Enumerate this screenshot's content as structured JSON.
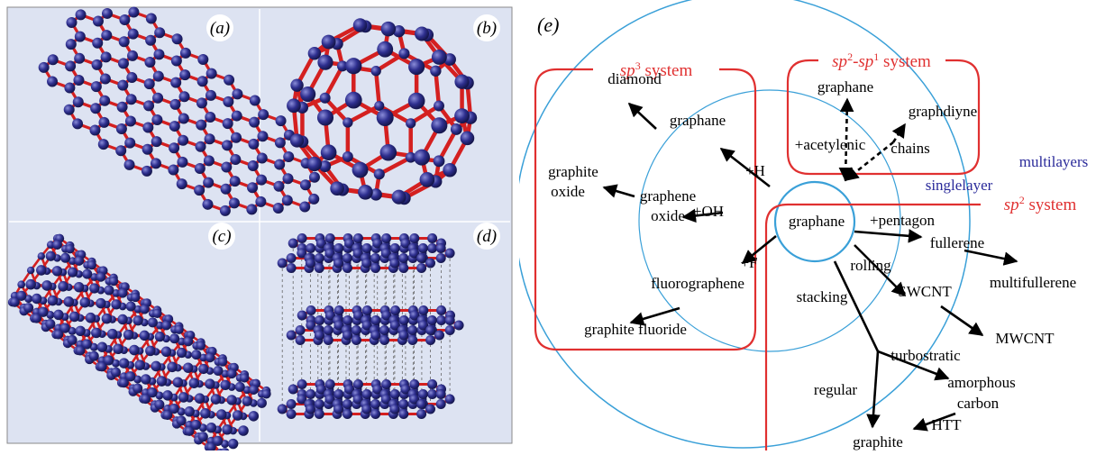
{
  "panels": {
    "a": "(a)",
    "b": "(b)",
    "c": "(c)",
    "d": "(d)",
    "e": "(e)"
  },
  "systems": {
    "sp3_base": "sp",
    "sp3_sup": "3",
    "sp3_word": " system",
    "sp2sp1_base1": "sp",
    "sp2sp1_sup1": "2",
    "sp2sp1_dash": "-",
    "sp2sp1_base2": "sp",
    "sp2sp1_sup2": "1",
    "sp2sp1_word": " system",
    "sp2_base": "sp",
    "sp2_sup": "2",
    "sp2_word": " system"
  },
  "labels": {
    "diamond": "diamond",
    "graphane_top": "graphane",
    "graphane_sp1": "graphane",
    "graphdiyne": "graphdiyne",
    "acetylenic": "+acetylenic",
    "chains": "chains",
    "multilayers": "multilayers",
    "singlelayer": "singlelayer",
    "graphite_oxide_1": "graphite",
    "graphite_oxide_2": "oxide",
    "graphene_oxide_1": "graphene",
    "graphene_oxide_2": "oxide",
    "plus_h": "+H",
    "plus_oh": "+OH",
    "graphane_center": "graphane",
    "plus_pentagon": "+pentagon",
    "fullerene": "fullerene",
    "multifullerene": "multifullerene",
    "plus_f": "+F",
    "fluorographene": "fluorographene",
    "rolling": "rolling",
    "swcnt": "SWCNT",
    "stacking": "stacking",
    "graphite_fluoride": "graphite fluoride",
    "mwcnt": "MWCNT",
    "turbostratic": "turbostratic",
    "amorphous": "amorphous",
    "regular": "regular",
    "carbon": "carbon",
    "htt": "HTT",
    "graphite": "graphite"
  },
  "colors": {
    "panel_bg": "#dde3f2",
    "atom": "#2e2f8f",
    "bond": "#d42020",
    "system_box": "#e03030",
    "ring": "#3aa0d8",
    "arrow": "#000000",
    "layer_label": "#2a2a9a"
  }
}
